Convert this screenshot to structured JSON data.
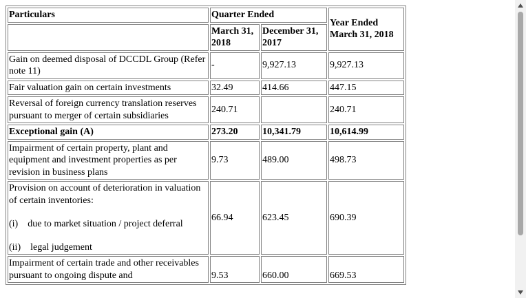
{
  "table": {
    "header": {
      "particulars": "Particulars",
      "quarter_ended": "Quarter Ended",
      "year_ended": "Year Ended March 31, 2018",
      "col_march": "March 31, 2018",
      "col_december": "December 31, 2017"
    },
    "rows": [
      {
        "label": "Gain on deemed disposal of DCCDL Group (Refer note 11)",
        "q_mar": "-",
        "q_dec": "9,927.13",
        "year": "9,927.13"
      },
      {
        "label": "Fair valuation gain on certain investments",
        "q_mar": "32.49",
        "q_dec": "414.66",
        "year": "447.15"
      },
      {
        "label": "Reversal of foreign currency translation reserves pursuant to merger of certain subsidiaries",
        "q_mar": "240.71",
        "q_dec": "",
        "year": "240.71"
      },
      {
        "label": "Exceptional gain (A)",
        "q_mar": "273.20",
        "q_dec": "10,341.79",
        "year": "10,614.99"
      },
      {
        "label": "Impairment of certain property, plant and equipment and investment properties as per revision in business plans",
        "q_mar": "9.73",
        "q_dec": "489.00",
        "year": "498.73"
      },
      {
        "label": "Provision on account of deterioration in valuation of certain inventories:",
        "sub1": "(i)    due to market situation / project deferral",
        "sub2": "(ii)    legal judgement",
        "q_mar": "66.94",
        "q_dec": "623.45",
        "year": "690.39"
      },
      {
        "label": "Impairment of certain trade and other receivables pursuant to ongoing dispute and",
        "q_mar": "9.53",
        "q_dec": "660.00",
        "year": "669.53"
      }
    ]
  }
}
